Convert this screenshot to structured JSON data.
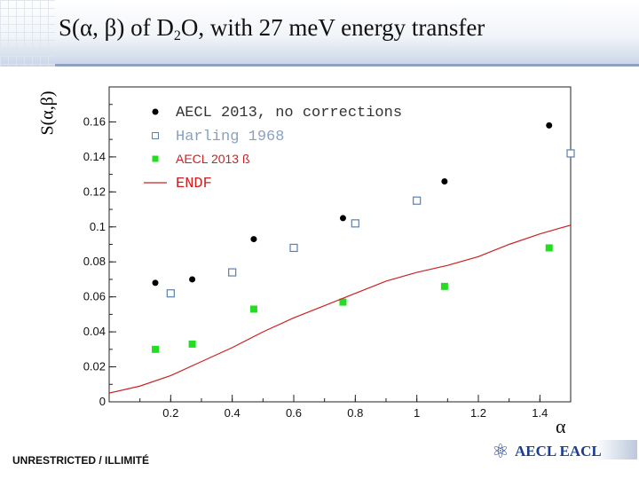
{
  "slide": {
    "title_main": "S(α, β) of D",
    "title_sub": "2",
    "title_rest": "O, with 27 meV energy transfer",
    "footer": "UNRESTRICTED / ILLIMITÉ",
    "logo_text": "AECL EACL"
  },
  "chart_data": {
    "type": "scatter",
    "title": "S(α, β) of D2O, with 27 meV energy transfer",
    "xlabel": "α",
    "ylabel": "S(α,β)",
    "xlim": [
      0,
      1.5
    ],
    "ylim": [
      0,
      0.18
    ],
    "xticks": [
      0.2,
      0.4,
      0.6,
      0.8,
      1,
      1.2,
      1.4
    ],
    "xtick_labels": [
      "0.2",
      "0.4",
      "0.6",
      "0.8",
      "1",
      "1.2",
      "1.4"
    ],
    "yticks": [
      0,
      0.02,
      0.04,
      0.06,
      0.08,
      0.1,
      0.12,
      0.14,
      0.16
    ],
    "ytick_labels": [
      "0",
      "0.02",
      "0.04",
      "0.06",
      "0.08",
      "0.1",
      "0.12",
      "0.14",
      "0.16"
    ],
    "legend_position": "top-left",
    "series": [
      {
        "name": "AECL 2013, no corrections",
        "marker": "filled-circle",
        "color": "#000000",
        "x": [
          0.15,
          0.27,
          0.47,
          0.76,
          1.09,
          1.43
        ],
        "y": [
          0.068,
          0.07,
          0.093,
          0.105,
          0.126,
          0.158
        ]
      },
      {
        "name": "Harling 1968",
        "marker": "open-square",
        "color": "#5b7fb0",
        "x": [
          0.2,
          0.4,
          0.6,
          0.8,
          1.0,
          1.5
        ],
        "y": [
          0.062,
          0.074,
          0.088,
          0.102,
          0.115,
          0.142
        ]
      },
      {
        "name": "AECL 2013",
        "legend_suffix": "ß",
        "marker": "filled-square",
        "color": "#22dd22",
        "x": [
          0.15,
          0.27,
          0.47,
          0.76,
          1.09,
          1.43
        ],
        "y": [
          0.03,
          0.033,
          0.053,
          0.057,
          0.066,
          0.088
        ]
      },
      {
        "name": "ENDF",
        "marker": "line",
        "color": "#cc2222",
        "x": [
          0.0,
          0.1,
          0.2,
          0.3,
          0.4,
          0.5,
          0.6,
          0.7,
          0.8,
          0.9,
          1.0,
          1.1,
          1.2,
          1.3,
          1.4,
          1.5
        ],
        "y": [
          0.005,
          0.009,
          0.015,
          0.023,
          0.031,
          0.04,
          0.048,
          0.055,
          0.062,
          0.069,
          0.074,
          0.078,
          0.083,
          0.09,
          0.096,
          0.101
        ]
      }
    ]
  }
}
